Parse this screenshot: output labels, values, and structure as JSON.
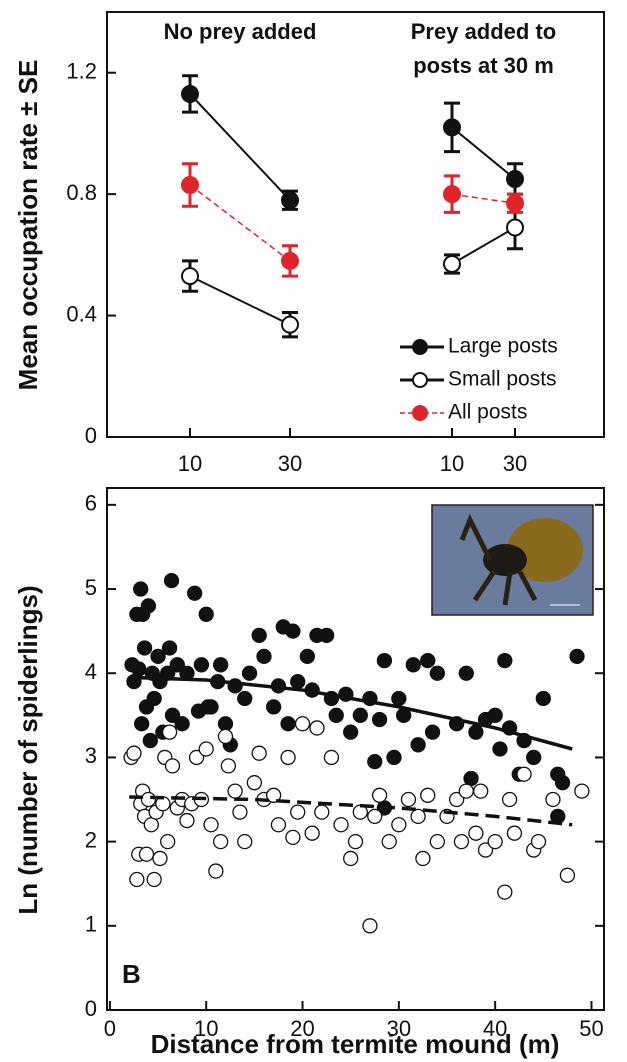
{
  "chart_data": [
    {
      "type": "line",
      "ylabel": "Mean occupation rate ± SE",
      "categories": [
        "10",
        "30",
        "10",
        "30"
      ],
      "groups": [
        {
          "lines": [
            "No prey added"
          ]
        },
        {
          "lines": [
            "Prey added to",
            "posts at 30 m"
          ]
        }
      ],
      "ylim": [
        0,
        1.4
      ],
      "yticks": [
        0,
        0.4,
        0.8,
        1.2
      ],
      "series": [
        {
          "name": "Large posts",
          "color": "#111111",
          "fill": "#111111",
          "dash": false,
          "values": [
            1.13,
            0.78,
            1.02,
            0.85
          ],
          "errors": [
            0.06,
            0.03,
            0.08,
            0.05
          ]
        },
        {
          "name": "Small posts",
          "color": "#111111",
          "fill": "#ffffff",
          "dash": false,
          "values": [
            0.53,
            0.37,
            0.57,
            0.69
          ],
          "errors": [
            0.05,
            0.04,
            0.03,
            0.07
          ]
        },
        {
          "name": "All posts",
          "color": "#e0242b",
          "fill": "#e0242b",
          "dash": true,
          "values": [
            0.83,
            0.58,
            0.8,
            0.77
          ],
          "errors": [
            0.07,
            0.05,
            0.06,
            0.03
          ]
        }
      ]
    },
    {
      "type": "scatter",
      "panel_label": "B",
      "xlabel": "Distance from termite mound (m)",
      "ylabel": "Ln (number of spiderlings)",
      "xlim": [
        -0.3,
        51.3
      ],
      "xticks": [
        0,
        10,
        20,
        30,
        40,
        50
      ],
      "ylim": [
        0,
        6.2
      ],
      "yticks": [
        0,
        1,
        2,
        3,
        4,
        5,
        6
      ],
      "series": [
        {
          "color": "#111111",
          "fill": "#111111",
          "x": [
            2.3,
            2.5,
            2.8,
            3,
            3.2,
            3.3,
            3.4,
            3.6,
            3.8,
            4,
            4.2,
            4.4,
            4.6,
            5,
            5.2,
            5.5,
            6,
            6.2,
            6.4,
            6.5,
            7,
            7.5,
            8,
            8.8,
            9.2,
            9.5,
            10,
            10.5,
            11.2,
            11.5,
            12,
            12.5,
            13,
            14,
            14.5,
            15.5,
            16,
            17,
            17.5,
            18,
            18.5,
            19,
            19.5,
            20.5,
            21,
            21.5,
            22.5,
            23,
            23.5,
            24.5,
            25,
            26,
            27,
            27.5,
            28,
            28.5,
            29.5,
            30,
            30.5,
            31.5,
            32,
            33,
            33.5,
            34,
            36,
            37,
            37.5,
            38,
            39,
            40,
            40.5,
            41,
            41.5,
            42.5,
            43,
            44,
            45,
            46.5,
            47,
            48.5,
            46.5,
            28.5,
            10.2
          ],
          "values": [
            4.1,
            3.9,
            4.7,
            4.05,
            5.0,
            3.4,
            4.7,
            4.3,
            3.6,
            4.8,
            3.2,
            4.0,
            3.7,
            4.2,
            3.9,
            3.3,
            4.0,
            4.3,
            5.1,
            3.5,
            4.1,
            3.4,
            4.0,
            4.95,
            3.55,
            4.1,
            4.7,
            3.6,
            3.9,
            4.1,
            3.4,
            3.15,
            3.85,
            3.7,
            4.0,
            4.45,
            4.2,
            3.6,
            3.85,
            4.55,
            3.4,
            4.5,
            3.9,
            4.2,
            3.8,
            4.45,
            4.45,
            3.7,
            3.5,
            3.75,
            3.3,
            3.5,
            3.7,
            2.95,
            3.45,
            4.15,
            3.0,
            3.7,
            3.5,
            4.1,
            3.15,
            4.15,
            3.3,
            4.0,
            3.4,
            4.0,
            2.75,
            3.3,
            3.45,
            3.5,
            3.1,
            4.15,
            3.35,
            2.8,
            3.2,
            3.0,
            3.7,
            2.8,
            2.7,
            4.2,
            2.3,
            2.4,
            3.6
          ]
        },
        {
          "color": "#111111",
          "fill": "#ffffff",
          "x": [
            2.2,
            2.5,
            2.8,
            3,
            3.2,
            3.4,
            3.6,
            3.8,
            4,
            4.3,
            4.6,
            4.8,
            5.2,
            5.5,
            5.7,
            6,
            6.2,
            6.5,
            7,
            7.5,
            8,
            8.5,
            9,
            9.5,
            10,
            10.5,
            11,
            11.5,
            12,
            12.3,
            13,
            13.5,
            14,
            15,
            15.5,
            16,
            17,
            17.5,
            18.5,
            19,
            19.5,
            20,
            21,
            21.5,
            22,
            23,
            24,
            25,
            25.5,
            26,
            27,
            27.5,
            28,
            29,
            30,
            31,
            32,
            32.5,
            33,
            34,
            35,
            36,
            36.5,
            37,
            38,
            38.5,
            39,
            40,
            41,
            41.5,
            42,
            43,
            44,
            44.5,
            46,
            47.5,
            49
          ],
          "values": [
            3.0,
            3.05,
            1.55,
            1.85,
            2.45,
            2.6,
            2.3,
            1.85,
            2.5,
            2.2,
            1.55,
            2.35,
            1.8,
            2.45,
            3.0,
            2.0,
            3.3,
            2.9,
            2.4,
            2.5,
            2.25,
            2.45,
            3.0,
            2.5,
            3.1,
            2.2,
            1.65,
            2.0,
            3.25,
            2.9,
            2.6,
            2.35,
            2.0,
            2.7,
            3.05,
            2.5,
            2.55,
            2.2,
            3.0,
            2.05,
            2.35,
            3.4,
            2.1,
            3.35,
            2.35,
            3.0,
            2.2,
            1.8,
            2.0,
            2.35,
            1.0,
            2.3,
            2.55,
            2.0,
            2.2,
            2.5,
            2.3,
            1.8,
            2.55,
            2.0,
            2.3,
            2.5,
            2.0,
            2.6,
            2.1,
            2.6,
            1.9,
            2.0,
            1.4,
            2.5,
            2.1,
            2.8,
            1.9,
            2.0,
            2.5,
            1.6,
            2.6
          ]
        }
      ],
      "fits": [
        {
          "dash": false,
          "x": [
            2,
            10,
            20,
            30,
            40,
            48
          ],
          "values": [
            3.95,
            3.92,
            3.8,
            3.6,
            3.35,
            3.1
          ]
        },
        {
          "dash": true,
          "x": [
            2,
            15,
            30,
            40,
            48
          ],
          "values": [
            2.53,
            2.5,
            2.4,
            2.3,
            2.2
          ]
        }
      ]
    }
  ]
}
